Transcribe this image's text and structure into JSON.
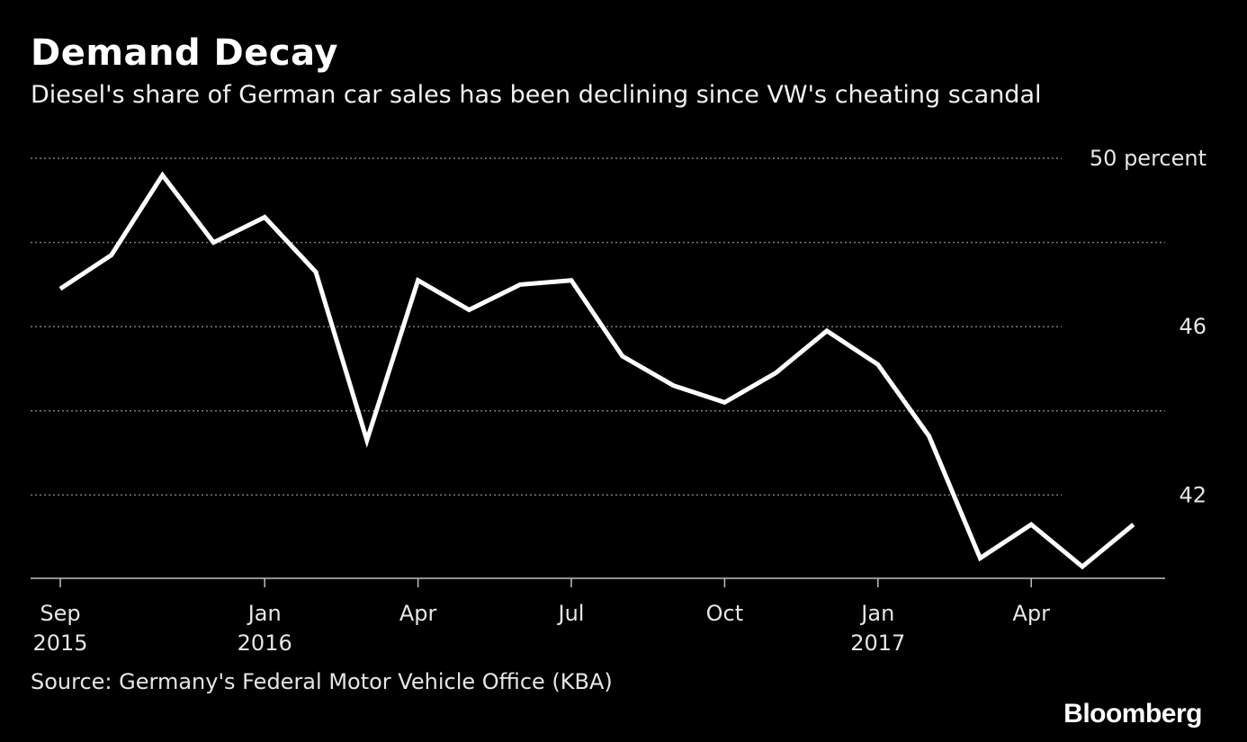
{
  "colors": {
    "background": "#000000",
    "line": "#ffffff",
    "grid": "#7a7a7a",
    "text": "#ffffff"
  },
  "chart_data": {
    "type": "line",
    "title": "Demand Decay",
    "subtitle": "Diesel's share of German car sales has been declining since VW's cheating scandal",
    "x": [
      "2015-09",
      "2015-10",
      "2015-11",
      "2015-12",
      "2016-01",
      "2016-02",
      "2016-03",
      "2016-04",
      "2016-05",
      "2016-06",
      "2016-07",
      "2016-08",
      "2016-09",
      "2016-10",
      "2016-11",
      "2016-12",
      "2017-01",
      "2017-02",
      "2017-03",
      "2017-04",
      "2017-05",
      "2017-06"
    ],
    "series": [
      {
        "values": [
          46.9,
          47.7,
          49.6,
          48.0,
          48.6,
          47.3,
          43.3,
          47.1,
          46.4,
          47.0,
          47.1,
          45.3,
          44.6,
          44.2,
          44.9,
          45.9,
          45.1,
          43.4,
          40.5,
          41.3,
          40.3,
          41.3
        ]
      }
    ],
    "ylim": [
      40.2,
      50
    ],
    "yticks": [
      {
        "value": 50,
        "label": "50 percent"
      },
      {
        "value": 48,
        "label": ""
      },
      {
        "value": 46,
        "label": "46"
      },
      {
        "value": 44,
        "label": ""
      },
      {
        "value": 42,
        "label": "42"
      }
    ],
    "xticks": [
      {
        "x": "2015-09",
        "line1": "Sep",
        "line2": "2015"
      },
      {
        "x": "2016-01",
        "line1": "Jan",
        "line2": "2016"
      },
      {
        "x": "2016-04",
        "line1": "Apr",
        "line2": ""
      },
      {
        "x": "2016-07",
        "line1": "Jul",
        "line2": ""
      },
      {
        "x": "2016-10",
        "line1": "Oct",
        "line2": ""
      },
      {
        "x": "2017-01",
        "line1": "Jan",
        "line2": "2017"
      },
      {
        "x": "2017-04",
        "line1": "Apr",
        "line2": ""
      }
    ],
    "grid": true,
    "xlabel": "",
    "ylabel": ""
  },
  "source": "Source: Germany's Federal Motor Vehicle Office (KBA)",
  "brand": "Bloomberg"
}
